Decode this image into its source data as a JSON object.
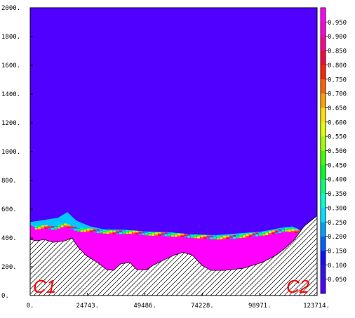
{
  "chart_data": {
    "type": "heatmap",
    "title": "",
    "xlabel": "",
    "ylabel": "",
    "xlim": [
      0,
      123714
    ],
    "ylim": [
      0,
      2000
    ],
    "x_tick_labels": [
      "0.",
      "24743.",
      "49486.",
      "74228.",
      "98971.",
      "123714."
    ],
    "y_tick_labels": [
      "0.",
      "200.",
      "400.",
      "600.",
      "800.",
      "1000.",
      "1200.",
      "1400.",
      "1600.",
      "1800.",
      "2000."
    ],
    "colorbar": {
      "min": 0,
      "max": 1,
      "levels": [
        0.05,
        0.1,
        0.15,
        0.2,
        0.25,
        0.3,
        0.35,
        0.4,
        0.45,
        0.5,
        0.55,
        0.6,
        0.65,
        0.7,
        0.75,
        0.8,
        0.85,
        0.9,
        0.95
      ],
      "labels": [
        "0.050",
        "0.100",
        "0.150",
        "0.200",
        "0.250",
        "0.300",
        "0.350",
        "0.400",
        "0.450",
        "0.500",
        "0.550",
        "0.600",
        "0.650",
        "0.700",
        "0.750",
        "0.800",
        "0.850",
        "0.900",
        "0.950"
      ],
      "colors": [
        "#5000ff",
        "#3010f0",
        "#1010ff",
        "#0060ff",
        "#00a0ff",
        "#00e0ff",
        "#00ffd0",
        "#00ff80",
        "#00ff20",
        "#40ff00",
        "#a0ff00",
        "#e0ff00",
        "#ffe000",
        "#ffa000",
        "#ff6000",
        "#ff2000",
        "#ff0040",
        "#ff0090",
        "#ff00d8",
        "#ff00ff"
      ]
    },
    "background_value": 0.02,
    "dense_layer_value": 1.0,
    "dense_layer_top": [
      [
        0,
        490
      ],
      [
        2000,
        475
      ],
      [
        6000,
        480
      ],
      [
        10000,
        470
      ],
      [
        14000,
        495
      ],
      [
        20000,
        460
      ],
      [
        26000,
        455
      ],
      [
        30000,
        448
      ],
      [
        36000,
        440
      ],
      [
        42000,
        445
      ],
      [
        50000,
        432
      ],
      [
        58000,
        428
      ],
      [
        66000,
        420
      ],
      [
        74000,
        410
      ],
      [
        80000,
        405
      ],
      [
        86000,
        408
      ],
      [
        92000,
        418
      ],
      [
        100000,
        432
      ],
      [
        106000,
        446
      ],
      [
        110000,
        462
      ],
      [
        114000,
        450
      ],
      [
        116000,
        440
      ]
    ],
    "interface_mixed_layer": [
      [
        0,
        510
      ],
      [
        6000,
        525
      ],
      [
        12000,
        540
      ],
      [
        16000,
        580
      ],
      [
        20000,
        520
      ],
      [
        26000,
        480
      ],
      [
        32000,
        460
      ],
      [
        40000,
        458
      ],
      [
        50000,
        445
      ],
      [
        60000,
        440
      ],
      [
        70000,
        425
      ],
      [
        80000,
        420
      ],
      [
        90000,
        432
      ],
      [
        100000,
        445
      ],
      [
        108000,
        470
      ],
      [
        113000,
        480
      ],
      [
        116000,
        460
      ]
    ],
    "bathymetry": [
      [
        0,
        390
      ],
      [
        3000,
        380
      ],
      [
        6000,
        390
      ],
      [
        10000,
        370
      ],
      [
        15000,
        380
      ],
      [
        18000,
        400
      ],
      [
        21000,
        330
      ],
      [
        24000,
        280
      ],
      [
        29000,
        230
      ],
      [
        33000,
        180
      ],
      [
        36000,
        175
      ],
      [
        39000,
        220
      ],
      [
        43000,
        230
      ],
      [
        46000,
        180
      ],
      [
        50000,
        178
      ],
      [
        53000,
        210
      ],
      [
        58000,
        250
      ],
      [
        62000,
        280
      ],
      [
        66000,
        300
      ],
      [
        70000,
        280
      ],
      [
        74000,
        210
      ],
      [
        78000,
        175
      ],
      [
        84000,
        175
      ],
      [
        92000,
        190
      ],
      [
        100000,
        230
      ],
      [
        106000,
        280
      ],
      [
        110000,
        330
      ],
      [
        114000,
        390
      ],
      [
        118000,
        480
      ],
      [
        123714,
        555
      ]
    ],
    "annotations": [
      "C1",
      "C2"
    ]
  }
}
